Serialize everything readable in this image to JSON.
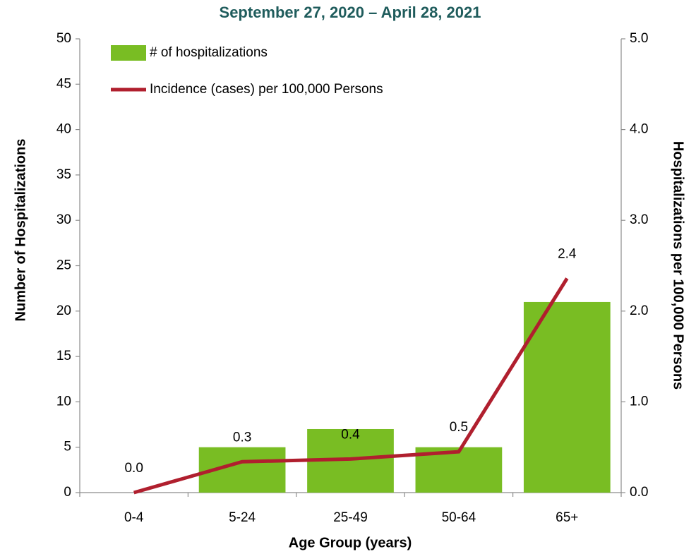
{
  "chart_data": {
    "type": "bar-line",
    "title": "September 27, 2020 – April 28, 2021",
    "x_label": "Age Group (years)",
    "y_label": "Number of Hospitalizations",
    "y2_label": "Hospitalizations per 100,000 Persons",
    "categories": [
      "0-4",
      "5-24",
      "25-49",
      "50-64",
      "65+"
    ],
    "series": [
      {
        "name": "# of hospitalizations",
        "type": "bar",
        "color": "#79bd23",
        "values": [
          0,
          5,
          7,
          5,
          21
        ]
      },
      {
        "name": "Incidence (cases) per 100,000 Persons",
        "type": "line",
        "axis": "y2",
        "color": "#b01f2e",
        "values": [
          0,
          0.34,
          0.37,
          0.45,
          2.36
        ],
        "value_labels": [
          "0.0",
          "0.3",
          "0.4",
          "0.5",
          "2.4"
        ]
      }
    ],
    "ylim": [
      0,
      50
    ],
    "yticks": [
      0,
      5,
      10,
      15,
      20,
      25,
      30,
      35,
      40,
      45,
      50
    ],
    "y2lim": [
      0,
      5
    ],
    "y2ticks": [
      {
        "value": 0,
        "label": "0.0"
      },
      {
        "value": 1,
        "label": "1.0"
      },
      {
        "value": 2,
        "label": "2.0"
      },
      {
        "value": 3,
        "label": "3.0"
      },
      {
        "value": 4,
        "label": "4.0"
      },
      {
        "value": 5,
        "label": "5.0"
      }
    ],
    "grid": false,
    "legend": "top-left"
  }
}
